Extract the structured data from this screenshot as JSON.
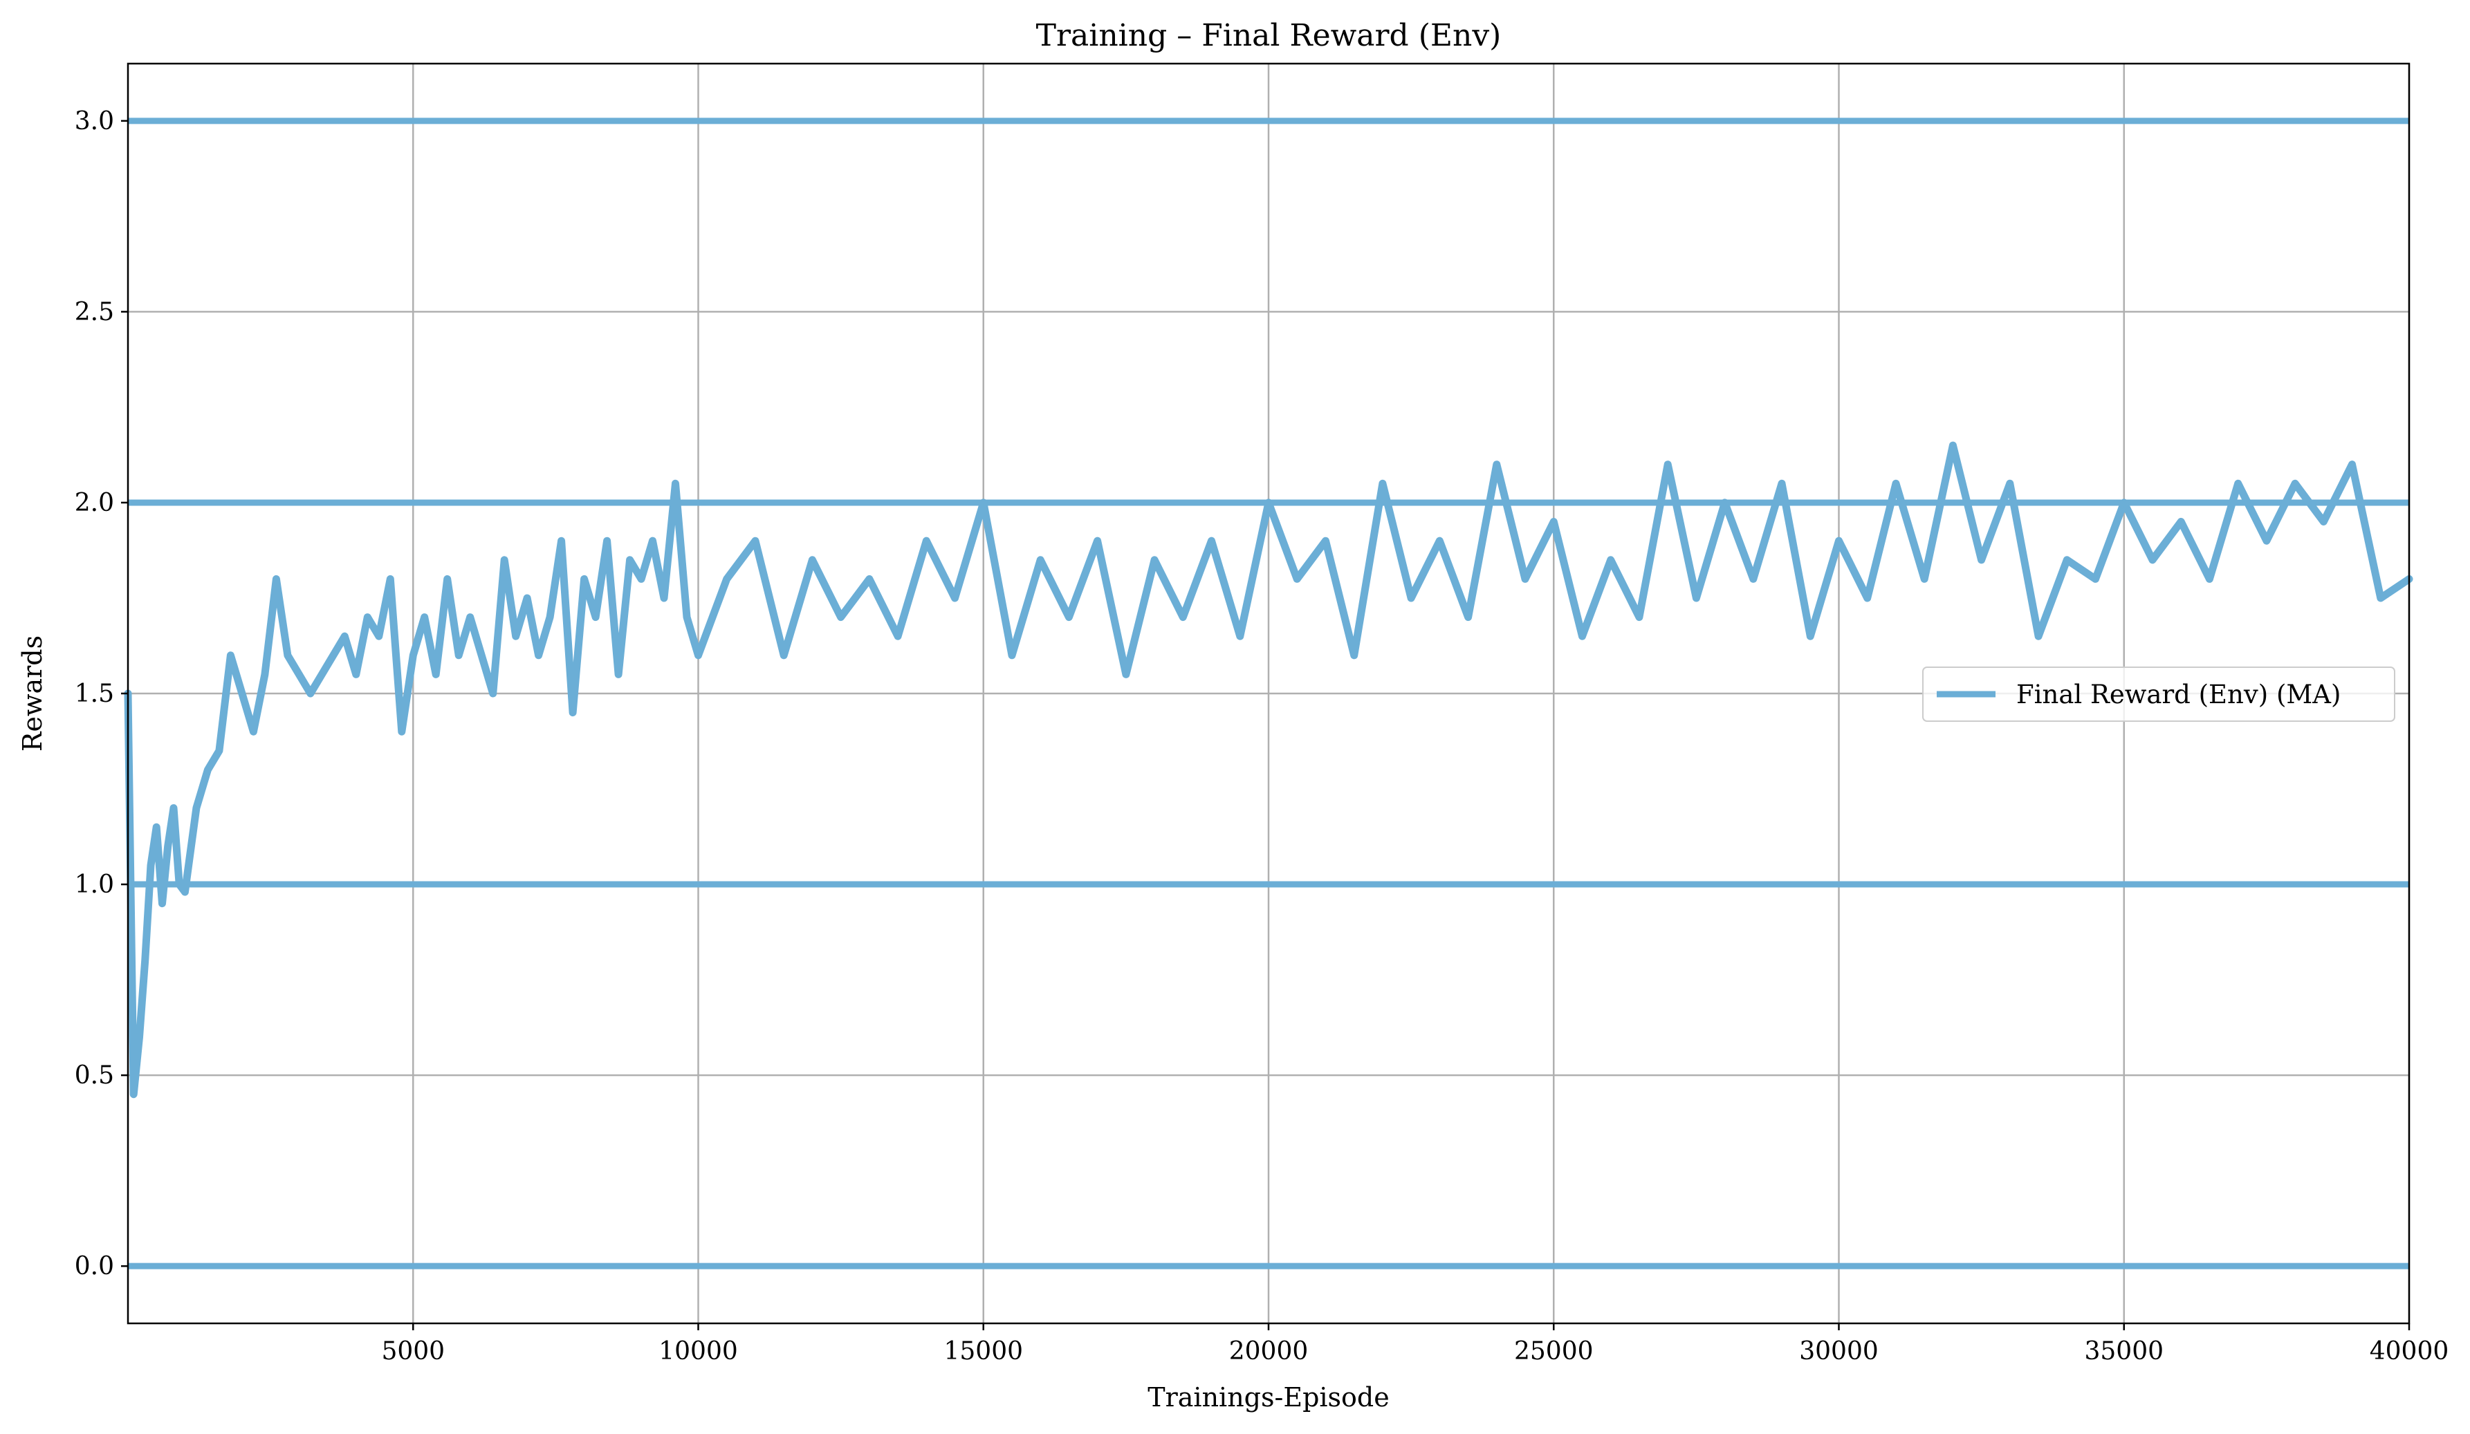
{
  "chart_data": {
    "type": "line",
    "title": "Training – Final Reward (Env)",
    "xlabel": "Trainings-Episode",
    "ylabel": "Rewards",
    "xlim": [
      0,
      40000
    ],
    "ylim": [
      -0.15,
      3.15
    ],
    "grid": true,
    "legend_position": "center-right",
    "x_ticks": [
      5000,
      10000,
      15000,
      20000,
      25000,
      30000,
      35000,
      40000
    ],
    "x_tick_labels": [
      "5000",
      "10000",
      "15000",
      "20000",
      "25000",
      "30000",
      "35000",
      "40000"
    ],
    "y_ticks": [
      0.0,
      0.5,
      1.0,
      1.5,
      2.0,
      2.5,
      3.0
    ],
    "y_tick_labels": [
      "0.0",
      "0.5",
      "1.0",
      "1.5",
      "2.0",
      "2.5",
      "3.0"
    ],
    "reference_levels": [
      0.0,
      1.0,
      2.0,
      3.0
    ],
    "series": [
      {
        "name": "Final Reward (Env) (MA)",
        "color": "#6baed6",
        "x": [
          0,
          100,
          200,
          300,
          400,
          500,
          600,
          700,
          800,
          900,
          1000,
          1200,
          1400,
          1600,
          1800,
          2000,
          2200,
          2400,
          2600,
          2800,
          3000,
          3200,
          3400,
          3600,
          3800,
          4000,
          4200,
          4400,
          4600,
          4800,
          5000,
          5200,
          5400,
          5600,
          5800,
          6000,
          6200,
          6400,
          6600,
          6800,
          7000,
          7200,
          7400,
          7600,
          7800,
          8000,
          8200,
          8400,
          8600,
          8800,
          9000,
          9200,
          9400,
          9600,
          9800,
          10000,
          10500,
          11000,
          11500,
          12000,
          12500,
          13000,
          13500,
          14000,
          14500,
          15000,
          15500,
          16000,
          16500,
          17000,
          17500,
          18000,
          18500,
          19000,
          19500,
          20000,
          20500,
          21000,
          21500,
          22000,
          22500,
          23000,
          23500,
          24000,
          24500,
          25000,
          25500,
          26000,
          26500,
          27000,
          27500,
          28000,
          28500,
          29000,
          29500,
          30000,
          30500,
          31000,
          31500,
          32000,
          32500,
          33000,
          33500,
          34000,
          34500,
          35000,
          35500,
          36000,
          36500,
          37000,
          37500,
          38000,
          38500,
          39000,
          39500,
          40000
        ],
        "values": [
          1.5,
          0.45,
          0.6,
          0.8,
          1.05,
          1.15,
          0.95,
          1.1,
          1.2,
          1.0,
          0.98,
          1.2,
          1.3,
          1.35,
          1.6,
          1.5,
          1.4,
          1.55,
          1.8,
          1.6,
          1.55,
          1.5,
          1.55,
          1.6,
          1.65,
          1.55,
          1.7,
          1.65,
          1.8,
          1.4,
          1.6,
          1.7,
          1.55,
          1.8,
          1.6,
          1.7,
          1.6,
          1.5,
          1.85,
          1.65,
          1.75,
          1.6,
          1.7,
          1.9,
          1.45,
          1.8,
          1.7,
          1.9,
          1.55,
          1.85,
          1.8,
          1.9,
          1.75,
          2.05,
          1.7,
          1.6,
          1.8,
          1.9,
          1.6,
          1.85,
          1.7,
          1.8,
          1.65,
          1.9,
          1.75,
          2.0,
          1.6,
          1.85,
          1.7,
          1.9,
          1.55,
          1.85,
          1.7,
          1.9,
          1.65,
          2.0,
          1.8,
          1.9,
          1.6,
          2.05,
          1.75,
          1.9,
          1.7,
          2.1,
          1.8,
          1.95,
          1.65,
          1.85,
          1.7,
          2.1,
          1.75,
          2.0,
          1.8,
          2.05,
          1.65,
          1.9,
          1.75,
          2.05,
          1.8,
          2.15,
          1.85,
          2.05,
          1.65,
          1.85,
          1.8,
          2.0,
          1.85,
          1.95,
          1.8,
          2.05,
          1.9,
          2.05,
          1.95,
          2.1,
          1.75,
          1.8
        ]
      }
    ]
  }
}
